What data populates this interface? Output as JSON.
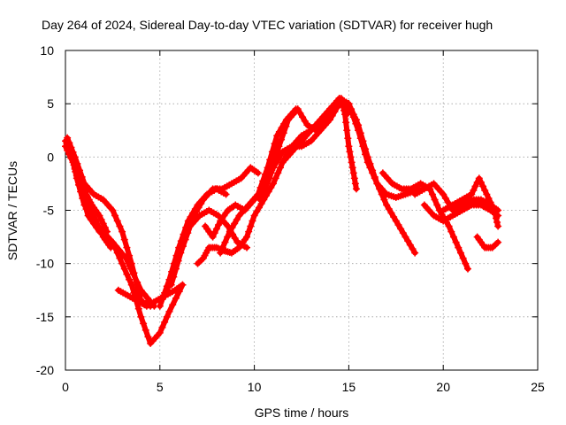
{
  "chart_data": {
    "type": "scatter",
    "title": "Day 264 of 2024, Sidereal Day-to-day VTEC variation (SDTVAR) for receiver hugh",
    "xlabel": "GPS time / hours",
    "ylabel": "SDTVAR / TECUs",
    "xlim": [
      0,
      25
    ],
    "ylim": [
      -20,
      10
    ],
    "xticks": [
      0,
      5,
      10,
      15,
      20,
      25
    ],
    "yticks": [
      -20,
      -15,
      -10,
      -5,
      0,
      5,
      10
    ],
    "xtick_labels": [
      "0",
      "5",
      "10",
      "15",
      "20",
      "25"
    ],
    "ytick_labels": [
      "-20",
      "-15",
      "-10",
      "-5",
      "0",
      "5",
      "10"
    ],
    "grid": true,
    "marker": "+",
    "color": "#ff0000",
    "series": [
      {
        "name": "arc-1",
        "x": [
          0.0,
          0.3,
          0.6,
          1.0,
          1.5,
          2.0,
          2.5,
          3.0,
          3.5,
          4.0,
          4.5,
          5.0,
          5.5,
          6.2
        ],
        "y": [
          1.5,
          0.5,
          -2.0,
          -4.5,
          -6.0,
          -7.0,
          -8.0,
          -10.0,
          -12.0,
          -15.0,
          -17.5,
          -16.5,
          -14.5,
          -12.0
        ]
      },
      {
        "name": "arc-2",
        "x": [
          0.0,
          0.4,
          0.8,
          1.2,
          1.8,
          2.5,
          3.2,
          4.0,
          4.7
        ],
        "y": [
          1.0,
          -0.5,
          -3.0,
          -5.5,
          -7.0,
          -8.0,
          -9.5,
          -12.5,
          -14.0
        ]
      },
      {
        "name": "arc-3",
        "x": [
          0.1,
          0.5,
          1.0,
          1.5,
          2.0,
          2.5,
          3.0,
          3.5,
          4.0,
          4.5
        ],
        "y": [
          1.8,
          0.0,
          -2.5,
          -3.5,
          -4.0,
          -5.0,
          -7.0,
          -10.0,
          -13.5,
          -14.0
        ]
      },
      {
        "name": "arc-4",
        "x": [
          0.2,
          0.6,
          1.0,
          1.5,
          2.0,
          2.4
        ],
        "y": [
          1.2,
          -1.0,
          -3.0,
          -5.5,
          -7.5,
          -8.5
        ]
      },
      {
        "name": "arc-5",
        "x": [
          0.5,
          0.8,
          1.1,
          1.4,
          1.8,
          2.2
        ],
        "y": [
          -1.0,
          -2.0,
          -3.5,
          -4.5,
          -5.5,
          -7.0
        ]
      },
      {
        "name": "arc-6",
        "x": [
          2.8,
          3.3,
          3.8,
          4.3,
          4.8,
          5.3,
          5.8,
          6.2
        ],
        "y": [
          -12.5,
          -13.0,
          -13.5,
          -14.0,
          -13.5,
          -13.0,
          -12.5,
          -12.0
        ]
      },
      {
        "name": "arc-7",
        "x": [
          5.0,
          5.5,
          6.0,
          6.5,
          7.0,
          7.5,
          8.0,
          8.5
        ],
        "y": [
          -14.0,
          -11.5,
          -8.5,
          -6.0,
          -4.5,
          -3.5,
          -3.0,
          -3.5
        ]
      },
      {
        "name": "arc-8",
        "x": [
          5.3,
          5.8,
          6.3,
          6.8,
          7.3,
          7.8,
          8.3,
          8.8,
          9.3,
          9.8,
          10.2
        ],
        "y": [
          -13.0,
          -10.0,
          -7.5,
          -5.5,
          -4.0,
          -3.0,
          -3.0,
          -2.5,
          -2.0,
          -1.0,
          -1.5
        ]
      },
      {
        "name": "arc-9",
        "x": [
          5.6,
          6.1,
          6.6,
          7.1,
          7.6,
          8.1,
          8.6,
          9.1,
          9.6
        ],
        "y": [
          -12.0,
          -9.0,
          -6.5,
          -5.5,
          -5.0,
          -5.5,
          -6.5,
          -8.0,
          -8.5
        ]
      },
      {
        "name": "arc-10",
        "x": [
          7.0,
          7.3,
          7.6,
          8.0,
          8.4,
          8.8,
          9.2,
          9.6,
          10.0,
          10.5,
          11.0,
          11.5,
          12.0,
          12.5,
          13.0,
          13.5,
          14.0,
          14.5,
          14.9
        ],
        "y": [
          -10.0,
          -9.5,
          -8.5,
          -8.5,
          -8.8,
          -9.0,
          -8.5,
          -7.5,
          -5.5,
          -4.0,
          -2.5,
          -0.5,
          1.0,
          2.0,
          2.5,
          3.5,
          4.5,
          5.5,
          4.0
        ]
      },
      {
        "name": "arc-11",
        "x": [
          7.4,
          7.8,
          8.2,
          8.6,
          9.0,
          9.5,
          10.0,
          10.5,
          11.0,
          11.5,
          12.0,
          12.5,
          13.0,
          13.5,
          14.0,
          14.5,
          15.0,
          15.4
        ],
        "y": [
          -6.5,
          -7.5,
          -6.0,
          -5.0,
          -4.5,
          -5.0,
          -4.0,
          -3.0,
          -1.0,
          0.5,
          1.0,
          1.0,
          1.5,
          2.5,
          3.5,
          5.0,
          4.5,
          3.5
        ]
      },
      {
        "name": "arc-12",
        "x": [
          8.2,
          8.7,
          9.2,
          9.7,
          10.2,
          10.7,
          11.2,
          11.7,
          12.2
        ],
        "y": [
          -9.0,
          -7.0,
          -5.5,
          -4.5,
          -3.5,
          -1.0,
          2.0,
          3.5,
          4.5
        ]
      },
      {
        "name": "arc-13",
        "x": [
          10.3,
          10.8,
          11.3,
          11.8,
          12.3,
          12.8,
          13.3,
          13.8,
          14.3,
          14.6,
          14.8,
          15.0,
          15.2,
          15.4
        ],
        "y": [
          -4.0,
          -2.0,
          1.0,
          3.5,
          4.5,
          3.0,
          2.5,
          3.5,
          5.0,
          5.5,
          4.0,
          1.0,
          -1.0,
          -3.0
        ]
      },
      {
        "name": "arc-14",
        "x": [
          11.5,
          12.0,
          12.5,
          13.0,
          13.5,
          14.0,
          14.5,
          15.0,
          15.5,
          16.0,
          16.5,
          17.0,
          17.5,
          18.0,
          18.5
        ],
        "y": [
          -0.5,
          0.5,
          1.5,
          2.5,
          3.5,
          4.5,
          5.5,
          5.0,
          3.0,
          0.0,
          -2.5,
          -4.5,
          -6.0,
          -7.5,
          -9.0
        ]
      },
      {
        "name": "arc-15",
        "x": [
          13.5,
          14.0,
          14.5,
          15.0,
          15.5,
          16.0,
          16.5,
          17.0,
          17.5,
          18.0,
          18.5,
          19.0
        ],
        "y": [
          3.0,
          4.0,
          5.5,
          5.0,
          2.5,
          -0.5,
          -2.5,
          -3.5,
          -3.8,
          -3.5,
          -3.2,
          -3.0
        ]
      },
      {
        "name": "arc-16",
        "x": [
          16.8,
          17.3,
          17.8,
          18.3,
          18.8,
          19.3,
          19.8,
          20.3,
          20.8,
          21.3
        ],
        "y": [
          -1.5,
          -2.5,
          -3.0,
          -3.0,
          -2.5,
          -3.0,
          -5.0,
          -6.5,
          -8.5,
          -10.5
        ]
      },
      {
        "name": "arc-17",
        "x": [
          18.5,
          19.0,
          19.5,
          20.0,
          20.5,
          21.0,
          21.5,
          22.0,
          22.5,
          22.9
        ],
        "y": [
          -3.5,
          -3.0,
          -2.5,
          -3.5,
          -5.0,
          -4.5,
          -4.0,
          -4.0,
          -4.5,
          -5.0
        ]
      },
      {
        "name": "arc-18",
        "x": [
          19.0,
          19.5,
          20.0,
          20.5,
          21.0,
          21.5,
          22.0,
          22.5,
          22.9
        ],
        "y": [
          -4.5,
          -5.5,
          -6.0,
          -5.5,
          -5.0,
          -4.5,
          -4.5,
          -5.0,
          -5.5
        ]
      },
      {
        "name": "arc-19",
        "x": [
          20.0,
          20.5,
          21.0,
          21.5,
          21.9,
          22.3,
          22.7,
          22.9
        ],
        "y": [
          -5.0,
          -4.5,
          -4.0,
          -3.5,
          -2.0,
          -3.5,
          -5.0,
          -6.5
        ]
      },
      {
        "name": "arc-20",
        "x": [
          21.8,
          22.2,
          22.6,
          22.9
        ],
        "y": [
          -7.5,
          -8.5,
          -8.5,
          -8.0
        ]
      }
    ]
  }
}
